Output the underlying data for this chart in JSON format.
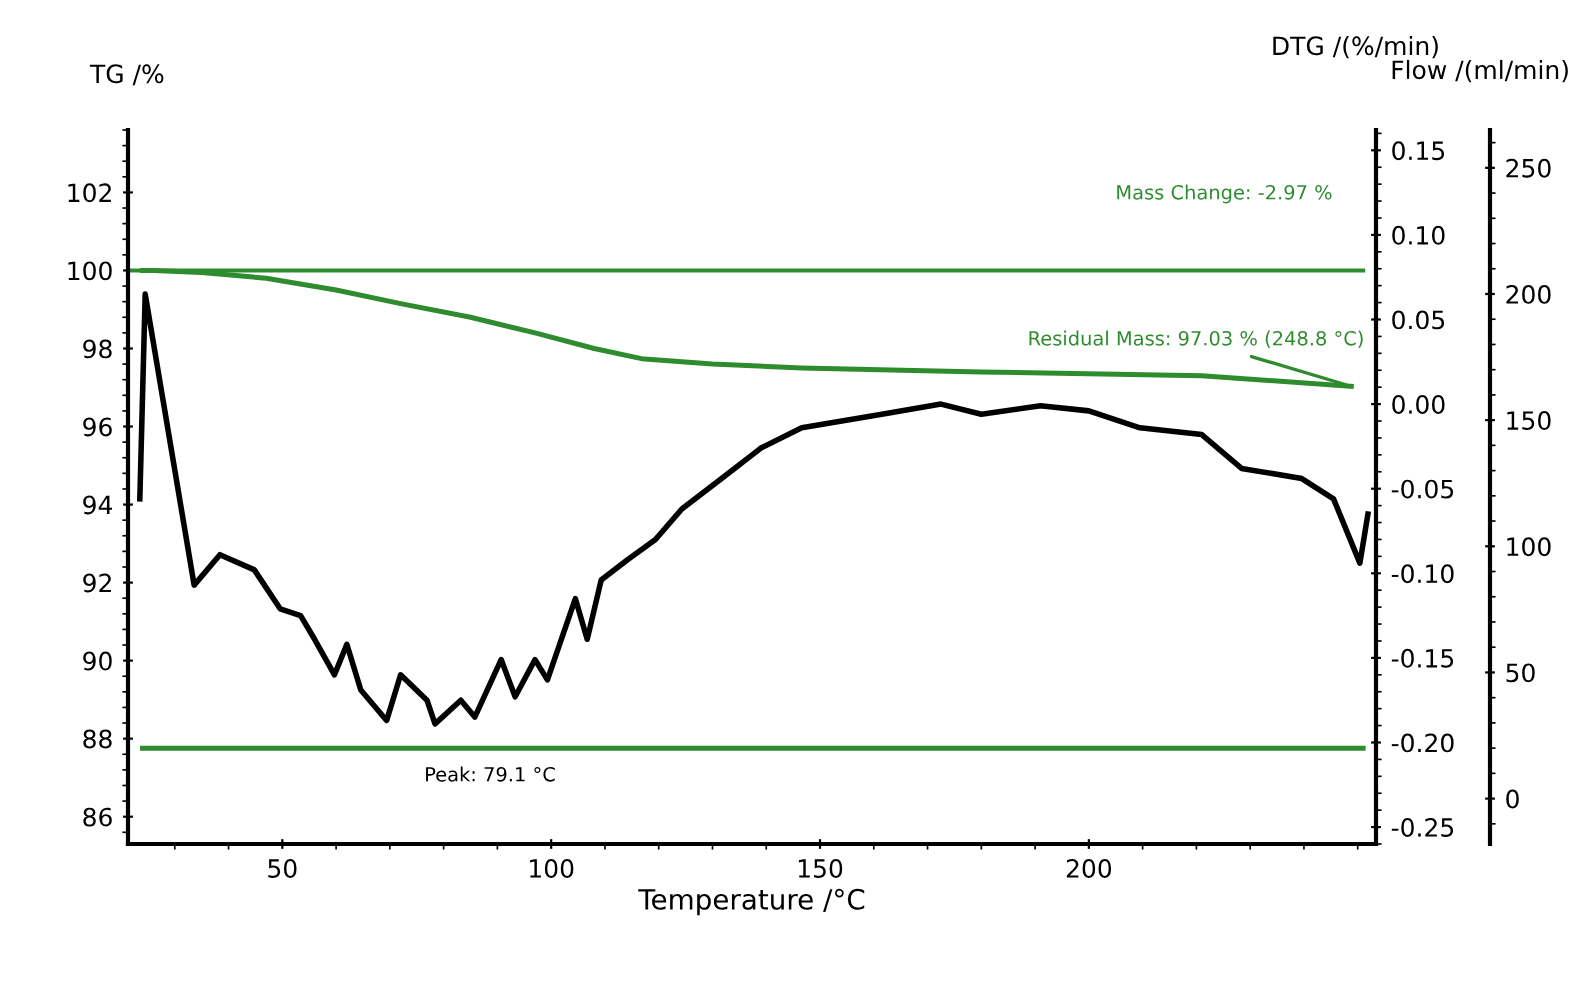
{
  "chart_data": {
    "type": "line",
    "xlabel": "Temperature /°C",
    "ylabel": "TG /%",
    "y2label": "DTG /(%/min)",
    "y3label": "Flow /(ml/min)",
    "xlim": [
      21.3,
      253.4
    ],
    "xticks": [
      50,
      100,
      150,
      200
    ],
    "ylim": [
      85.3,
      103.6
    ],
    "yticks": [
      86,
      88,
      90,
      92,
      94,
      96,
      98,
      100,
      102
    ],
    "y2lim": [
      -0.26,
      0.162
    ],
    "y2ticks": [
      -0.25,
      {
        "value": -0.2,
        "label": "-0.20"
      },
      -0.15,
      {
        "value": -0.1,
        "label": "-0.10"
      },
      -0.05,
      {
        "value": 0,
        "label": "0.00"
      },
      0.05,
      {
        "value": 0.1,
        "label": "0.10"
      },
      0.15
    ],
    "y3lim": [
      -18,
      265
    ],
    "y3ticks": [
      0,
      50,
      100,
      150,
      200,
      250
    ],
    "grid": false,
    "legend": false,
    "marker": "none",
    "line_style": "solid",
    "ref_lines": [
      {
        "axis": "y",
        "value": 100,
        "color": "#2e8b2e"
      }
    ],
    "series": [
      {
        "color": "#2e8b2e",
        "axis": "y",
        "x": [
          24,
          26.1,
          35,
          47,
          60,
          72,
          85,
          97,
          108,
          116.8,
          130,
          146.6,
          180,
          221,
          248.8
        ],
        "values": [
          100,
          100,
          99.95,
          99.8,
          99.5,
          99.15,
          98.8,
          98.4,
          98.0,
          97.74,
          97.6,
          97.5,
          97.4,
          97.3,
          97.03
        ]
      },
      {
        "color": "#000000",
        "axis": "y2",
        "x": [
          23.5,
          24.5,
          33.6,
          38.4,
          44.8,
          49.6,
          53.4,
          56,
          59.7,
          62,
          64.6,
          69.4,
          72,
          76.9,
          78.4,
          83.2,
          85.8,
          90.7,
          93.3,
          97,
          99.3,
          104.5,
          106.7,
          109.3,
          114.2,
          119.4,
          124.3,
          131.7,
          139,
          146.6,
          161.5,
          172.5,
          180,
          191,
          200,
          209.5,
          221,
          228.4,
          239.6,
          245.5,
          250.4,
          251.9
        ],
        "values": [
          -0.056,
          0.065,
          -0.107,
          -0.089,
          -0.098,
          -0.121,
          -0.125,
          -0.139,
          -0.16,
          -0.142,
          -0.169,
          -0.187,
          -0.16,
          -0.175,
          -0.189,
          -0.175,
          -0.185,
          -0.151,
          -0.173,
          -0.151,
          -0.163,
          -0.115,
          -0.139,
          -0.104,
          -0.092,
          -0.08,
          -0.062,
          -0.044,
          -0.026,
          -0.014,
          -0.006,
          0.0,
          -0.006,
          -0.001,
          -0.004,
          -0.014,
          -0.018,
          -0.038,
          -0.044,
          -0.056,
          -0.094,
          -0.065
        ]
      },
      {
        "color": "#2e8b2e",
        "axis": "y3",
        "x": [
          24,
          251
        ],
        "values": [
          20,
          20
        ]
      }
    ],
    "annotations": [
      "Mass Change: -2.97 %",
      {
        "text": "Residual Mass: 97.03 % (248.8 °C)",
        "x": 248.8,
        "y": 97.03
      },
      "Peak: 79.1 °C"
    ]
  }
}
